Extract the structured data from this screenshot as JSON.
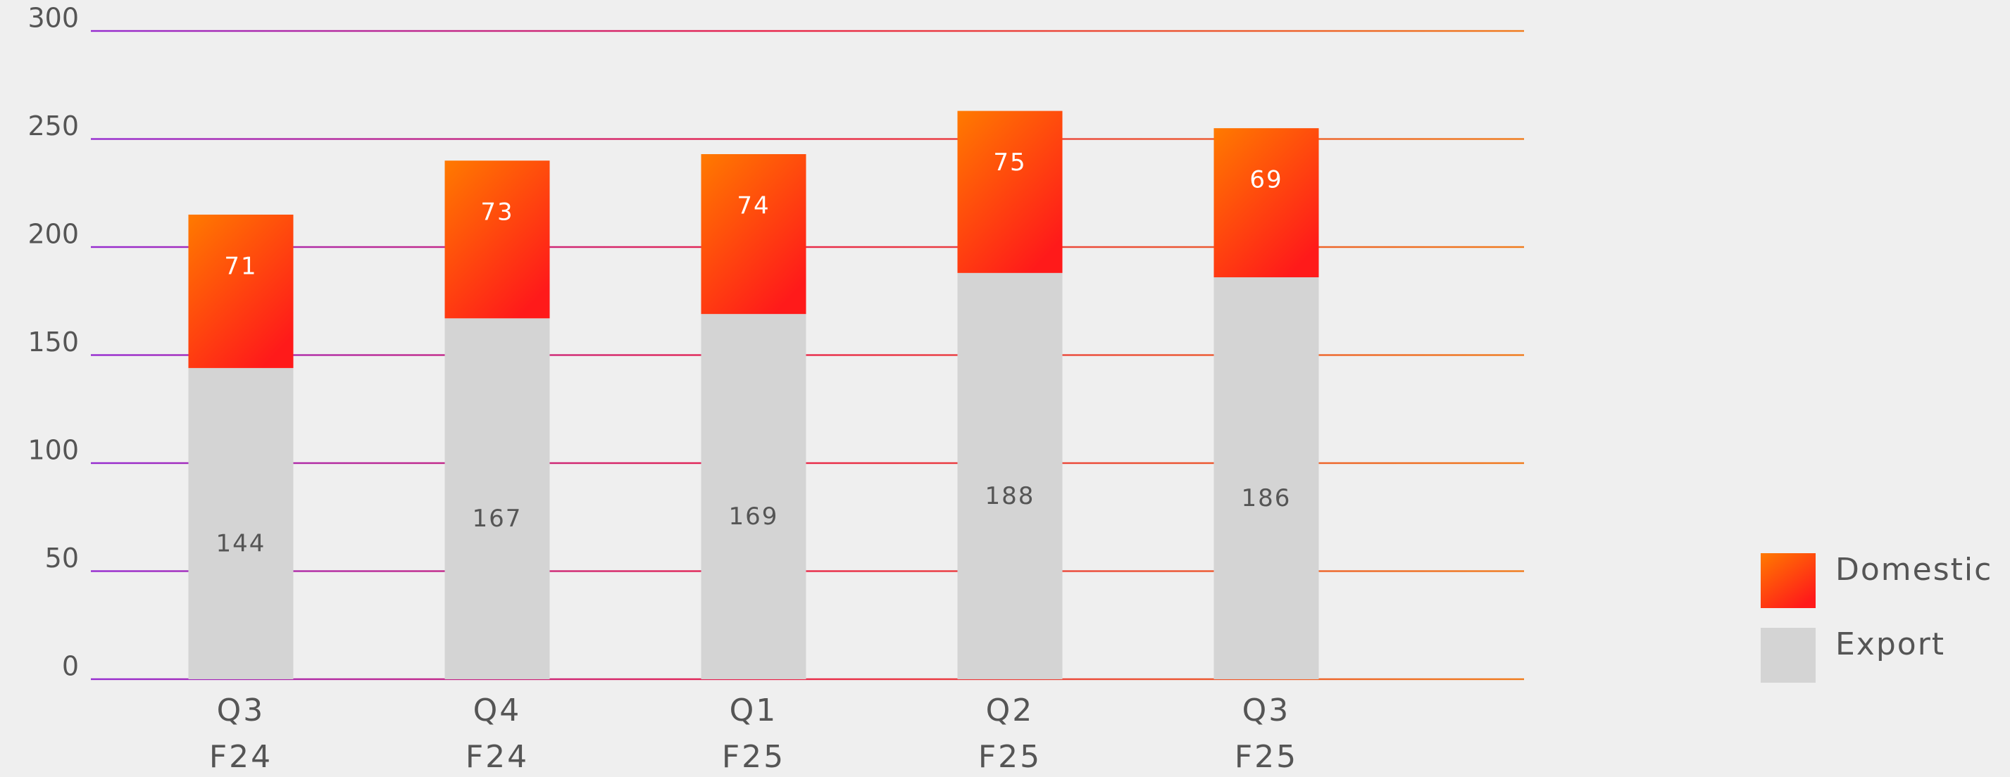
{
  "chart_data": {
    "type": "stacked_bar",
    "categories": [
      [
        "Q3",
        "F24"
      ],
      [
        "Q4",
        "F24"
      ],
      [
        "Q1",
        "F25"
      ],
      [
        "Q2",
        "F25"
      ],
      [
        "Q3",
        "F25"
      ]
    ],
    "series": [
      {
        "name": "Export",
        "color": "#d4d4d4",
        "label_color": "#555555",
        "values": [
          144,
          167,
          169,
          188,
          186
        ]
      },
      {
        "name": "Domestic",
        "color": [
          "#ff7a00",
          "#ff1a1a"
        ],
        "label_color": "#ffffff",
        "values": [
          71,
          73,
          74,
          75,
          69
        ]
      }
    ],
    "ylim": [
      0,
      300
    ],
    "yticks": [
      0,
      50,
      100,
      150,
      200,
      250,
      300
    ],
    "grid": true,
    "grid_color": [
      "#8a2be2",
      "#e8234a",
      "#f07a1a"
    ],
    "legend": "right"
  }
}
